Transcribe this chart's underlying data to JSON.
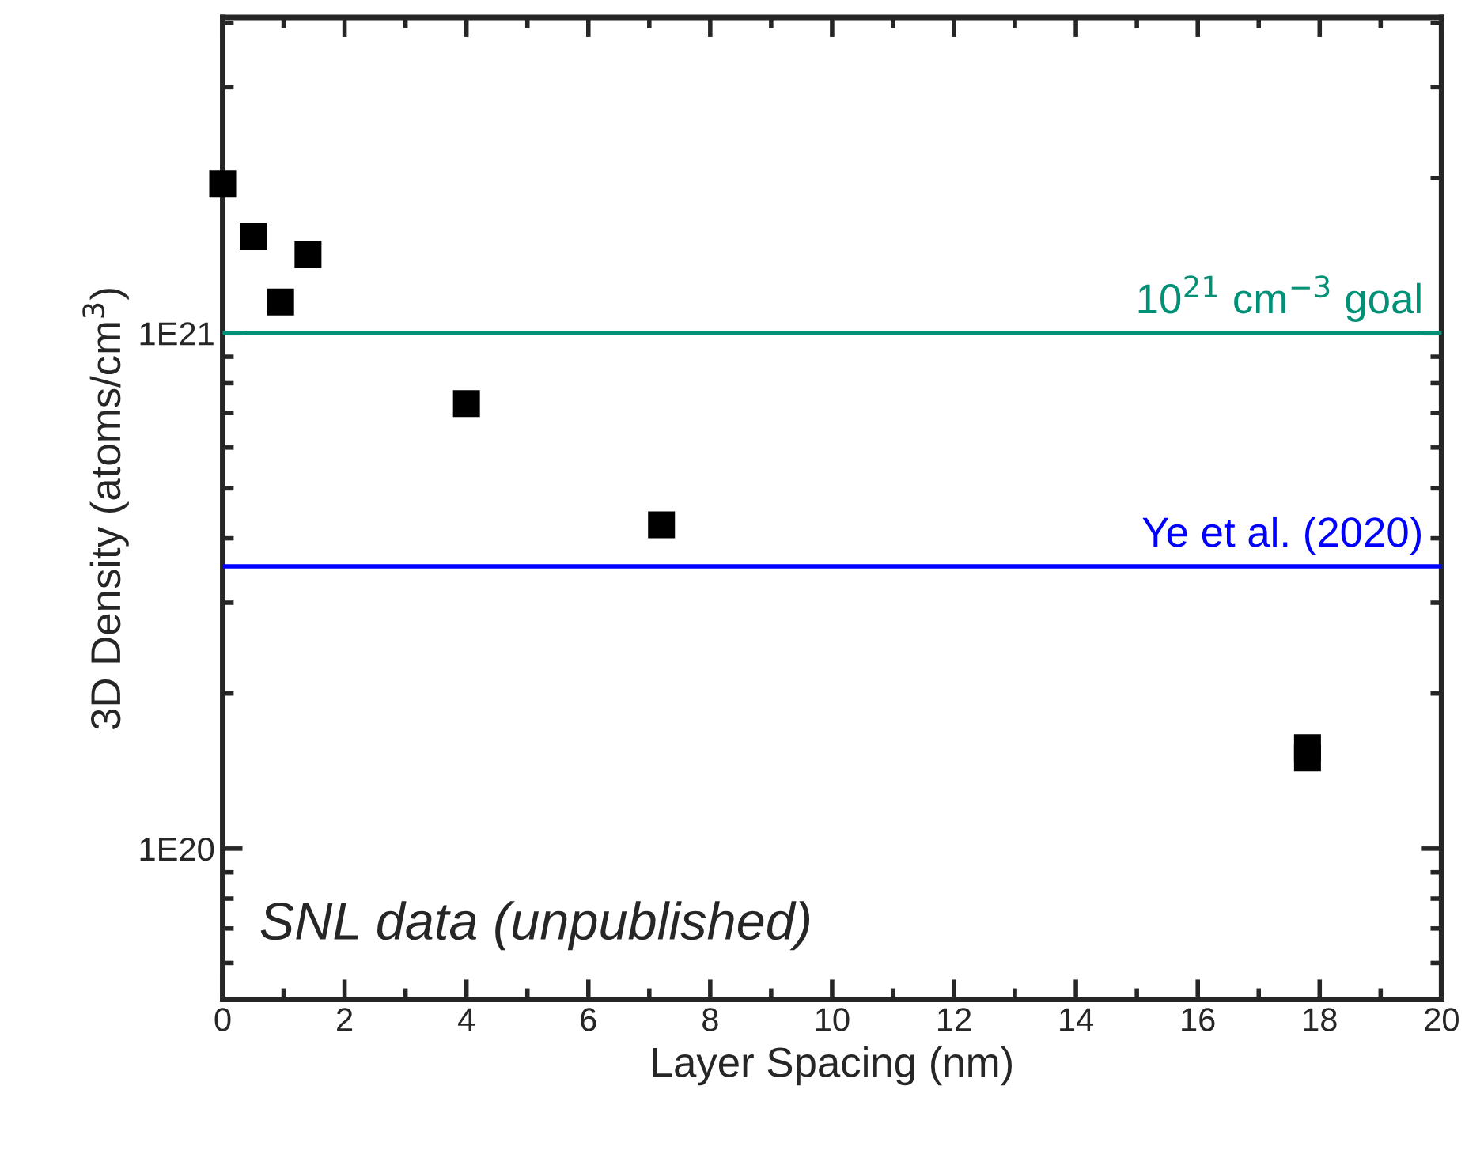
{
  "chart_data": {
    "type": "scatter",
    "xlabel": "Layer Spacing (nm)",
    "ylabel": "3D Density (atoms/cm$^{3}$)",
    "x": [
      0,
      0.5,
      0.95,
      1.4,
      4.0,
      7.2,
      17.8,
      17.8
    ],
    "series": [
      {
        "color": "#000000",
        "values": [
          1.95e+21,
          1.54e+21,
          1.15e+21,
          1.42e+21,
          7.3e+20,
          4.25e+20,
          1.57e+20,
          1.5e+20
        ]
      }
    ],
    "marker": "square",
    "log": "y",
    "xlim": [
      0,
      20
    ],
    "xticks": [
      0,
      2,
      4,
      6,
      8,
      10,
      12,
      14,
      16,
      18,
      20
    ],
    "ylim": [
      5.1e+19,
      4.1e+21
    ],
    "yticks": [
      {
        "value": 1e+20,
        "label": "1E20"
      },
      {
        "value": 1e+21,
        "label": "1E21"
      }
    ],
    "ref_lines": [
      {
        "axis": "y",
        "value": 1e+21,
        "label": "10$^{21}$ cm$^{−3}$ goal",
        "color": "#009177"
      },
      {
        "axis": "y",
        "value": 3.53e+20,
        "label": "Ye et al. (2020)",
        "color": "#0000ff"
      }
    ],
    "annotations": [
      "SNL data (unpublished)"
    ],
    "grid": false
  }
}
